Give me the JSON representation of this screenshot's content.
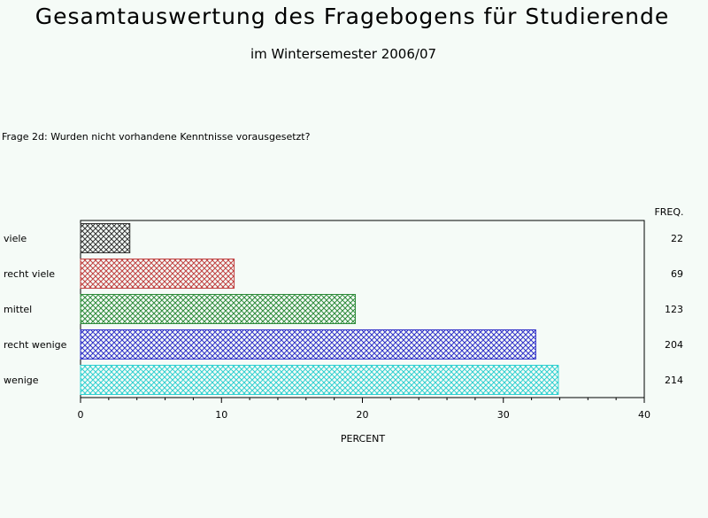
{
  "header": {
    "title": "Gesamtauswertung des Fragebogens für Studierende",
    "subtitle": "im Wintersemester 2006/07"
  },
  "question": "Frage 2d: Wurden nicht vorhandene Kenntnisse vorausgesetzt?",
  "chart_data": {
    "type": "bar",
    "orientation": "horizontal",
    "categories": [
      "viele",
      "recht viele",
      "mittel",
      "recht wenige",
      "wenige"
    ],
    "values": [
      3.5,
      10.9,
      19.5,
      32.3,
      33.9
    ],
    "freq": [
      22,
      69,
      123,
      204,
      214
    ],
    "freq_label": "FREQ.",
    "xlabel": "PERCENT",
    "xlim": [
      0,
      40
    ],
    "xticks": [
      0,
      10,
      20,
      30,
      40
    ],
    "colors": [
      "#333333",
      "#c04040",
      "#2e8b3a",
      "#3030c8",
      "#30d0d0"
    ],
    "pattern": "crosshatch",
    "grid": false
  }
}
